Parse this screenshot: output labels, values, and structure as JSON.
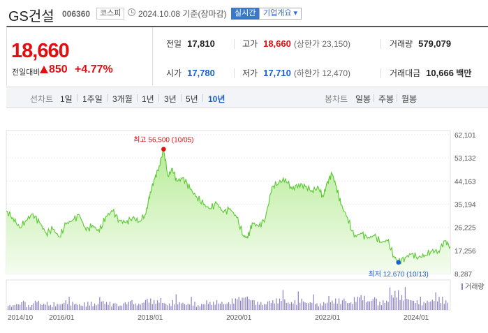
{
  "header": {
    "name": "GS건설",
    "code": "006360",
    "market": "코스피",
    "date": "2024.10.08",
    "basis": "기준(장마감)",
    "live": "실시간",
    "overview": "기업개요"
  },
  "summary": {
    "price": "18,660",
    "change_label": "전일대비",
    "change": "850",
    "pct": "+4.77%",
    "prev_label": "전일",
    "prev": "17,810",
    "high_label": "고가",
    "high": "18,660",
    "upper_label": "(상한가",
    "upper": "23,150)",
    "vol_label": "거래량",
    "vol": "579,079",
    "open_label": "시가",
    "open": "17,780",
    "low_label": "저가",
    "low": "17,710",
    "lower_label": "(하한가",
    "lower": "12,470)",
    "amt_label": "거래대금",
    "amt": "10,666",
    "amt_unit": "백만"
  },
  "periods": {
    "line_label": "선차트",
    "line_opts": [
      "1일",
      "1주일",
      "3개월",
      "1년",
      "3년",
      "5년",
      "10년"
    ],
    "candle_label": "봉차트",
    "candle_opts": [
      "일봉",
      "주봉",
      "월봉"
    ]
  },
  "colors": {
    "up": "#e01010",
    "down": "#1a5fd1",
    "area": "#c8f0b0",
    "line": "#5ac832",
    "volume": "#8b7fc6"
  },
  "chart_data": {
    "type": "area",
    "y_ticks": [
      62101,
      53132,
      44163,
      35194,
      26225,
      17256,
      8287
    ],
    "y_tick_labels": [
      "62,101",
      "53,132",
      "44,163",
      "35,194",
      "26,225",
      "17,256",
      "8,287"
    ],
    "ylim": [
      8287,
      62101
    ],
    "x_tick_labels": [
      "2014/10",
      "2016/01",
      "2018/01",
      "2020/01",
      "2022/01",
      "2024/01"
    ],
    "x_ticks": [
      2014.75,
      2016.0,
      2018.0,
      2020.0,
      2022.0,
      2024.0
    ],
    "xlim": [
      2014.75,
      2024.77
    ],
    "series": [
      {
        "x": [
          2014.75,
          2014.9,
          2015.05,
          2015.2,
          2015.35,
          2015.5,
          2015.65,
          2015.8,
          2015.95,
          2016.1,
          2016.25,
          2016.4,
          2016.55,
          2016.7,
          2016.85,
          2017.0,
          2017.15,
          2017.3,
          2017.45,
          2017.6,
          2017.75,
          2017.9,
          2018.0,
          2018.1,
          2018.2,
          2018.3,
          2018.4,
          2018.5,
          2018.6,
          2018.75,
          2018.9,
          2019.05,
          2019.2,
          2019.35,
          2019.5,
          2019.65,
          2019.8,
          2019.95,
          2020.1,
          2020.2,
          2020.3,
          2020.45,
          2020.6,
          2020.75,
          2020.9,
          2021.05,
          2021.2,
          2021.35,
          2021.5,
          2021.65,
          2021.8,
          2021.9,
          2022.0,
          2022.1,
          2022.2,
          2022.3,
          2022.45,
          2022.6,
          2022.75,
          2022.9,
          2023.05,
          2023.2,
          2023.35,
          2023.5,
          2023.6,
          2023.75,
          2023.9,
          2024.05,
          2024.2,
          2024.35,
          2024.5,
          2024.65,
          2024.77
        ],
        "y": [
          32500,
          30000,
          26000,
          29000,
          31500,
          28000,
          24000,
          25500,
          22500,
          27500,
          29000,
          31000,
          25000,
          27000,
          24500,
          30500,
          32500,
          29000,
          28000,
          30000,
          28500,
          31500,
          40000,
          45000,
          50000,
          56500,
          46000,
          49000,
          44000,
          45500,
          41000,
          38000,
          35000,
          33500,
          35500,
          32000,
          33500,
          30000,
          23000,
          22000,
          28000,
          26500,
          30000,
          42000,
          43500,
          45000,
          41000,
          43000,
          42000,
          40500,
          41500,
          38000,
          44000,
          47000,
          42000,
          35000,
          30000,
          22500,
          24000,
          22000,
          23000,
          20500,
          21000,
          15000,
          12670,
          14500,
          16000,
          14500,
          15500,
          17000,
          17000,
          21000,
          18660
        ]
      }
    ],
    "annotations": [
      {
        "label": "최고 56,500 (10/05)",
        "x": 2018.3,
        "y": 56500,
        "color": "#e01010"
      },
      {
        "label": "최저 12,670 (10/13)",
        "x": 2023.6,
        "y": 12670,
        "color": "#1a5fd1"
      }
    ],
    "volume_label": "거래량",
    "volume": [
      3,
      4,
      5,
      3,
      6,
      4,
      5,
      3,
      4,
      6,
      5,
      4,
      3,
      5,
      4,
      6,
      5,
      4,
      3,
      5,
      6,
      4,
      5,
      7,
      6,
      5,
      4,
      6,
      5,
      4,
      5,
      3,
      4,
      5,
      6,
      4,
      5,
      7,
      8,
      9,
      6,
      5,
      4,
      6,
      7,
      8,
      5,
      6,
      7,
      5,
      6,
      4,
      5,
      6,
      7,
      6,
      5,
      8,
      9,
      6,
      7,
      5,
      6,
      10,
      12,
      9,
      7,
      6,
      5,
      6,
      7,
      8,
      6
    ]
  }
}
